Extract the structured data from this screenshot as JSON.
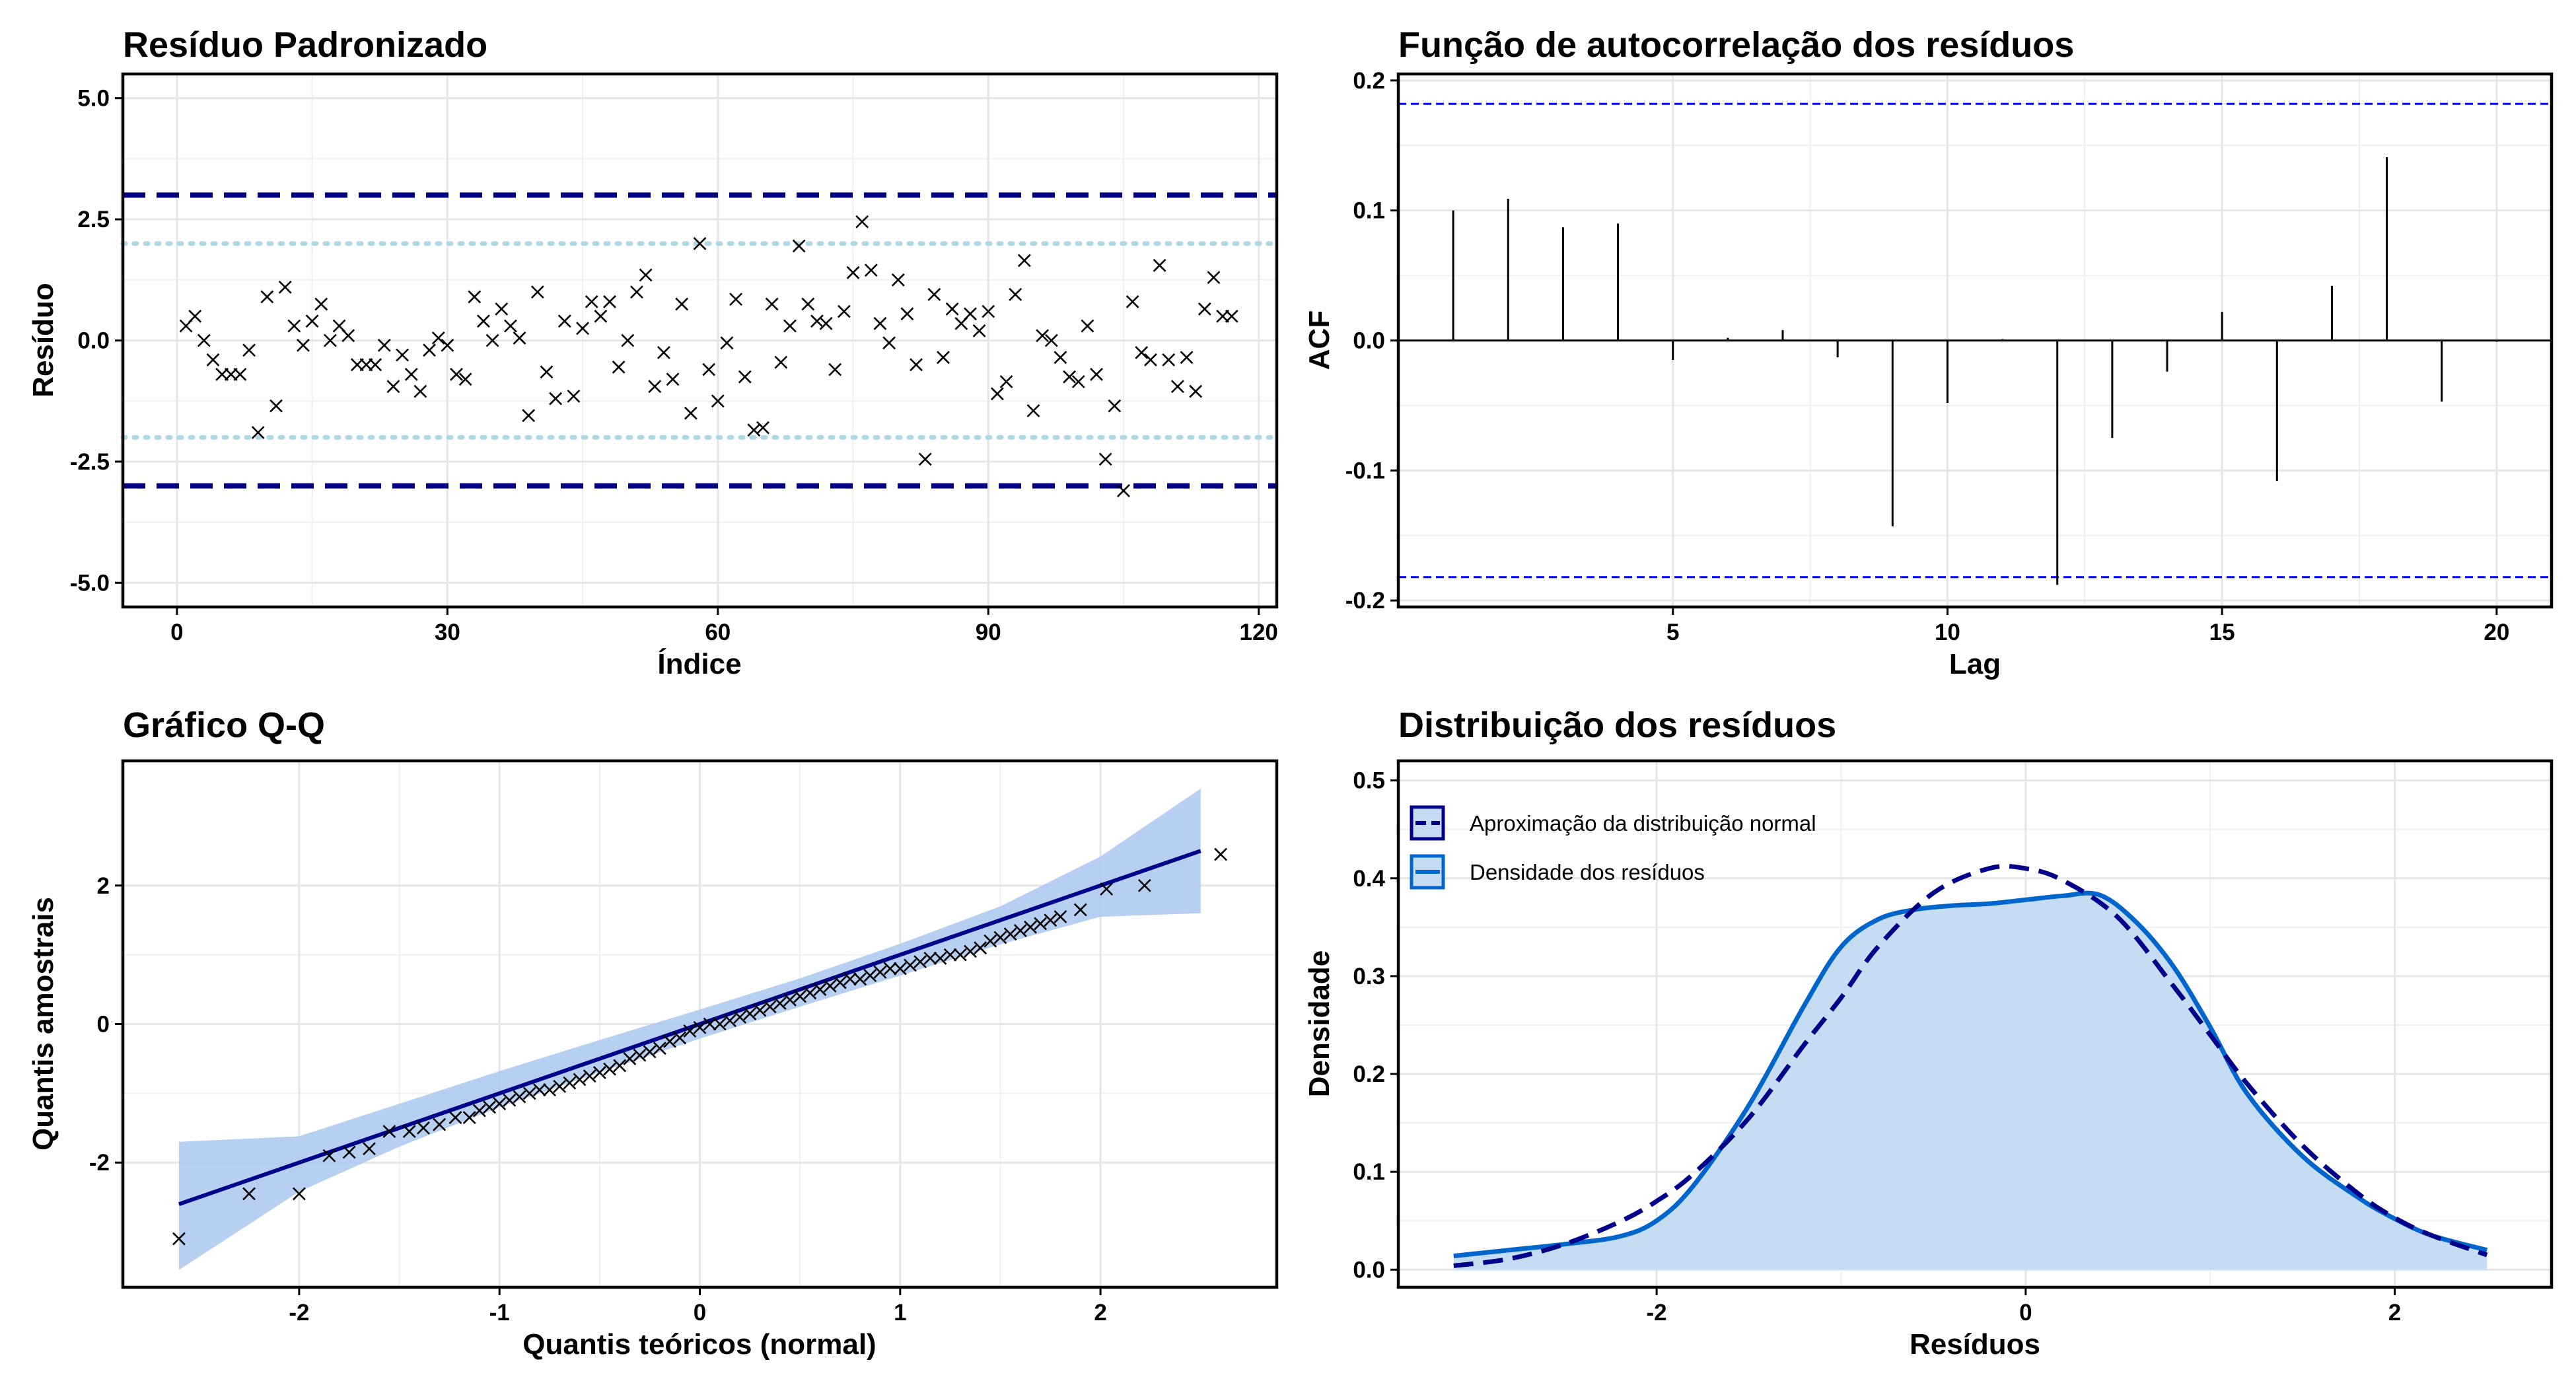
{
  "chart_data": [
    {
      "type": "scatter",
      "title": "Resíduo Padronizado",
      "xlabel": "Índice",
      "ylabel": "Resíduo",
      "xlim": [
        -6,
        122
      ],
      "ylim": [
        -5.5,
        5.5
      ],
      "x_ticks": [
        0,
        30,
        60,
        90,
        120
      ],
      "y_ticks": [
        5.0,
        2.5,
        0.0,
        -2.5,
        -5.0
      ],
      "y_tick_labels": [
        "5.0",
        "2.5",
        "0.0",
        "-2.5",
        "-5.0"
      ],
      "marker": "x",
      "grid": true,
      "reference_lines": [
        {
          "y": 3,
          "style": "dashed",
          "color": "#000080"
        },
        {
          "y": -3,
          "style": "dashed",
          "color": "#000080"
        },
        {
          "y": 2,
          "style": "dotted",
          "color": "#add8e6"
        },
        {
          "y": -2,
          "style": "dotted",
          "color": "#add8e6"
        }
      ],
      "points": [
        [
          1,
          0.3
        ],
        [
          2,
          0.5
        ],
        [
          3,
          0.0
        ],
        [
          4,
          -0.4
        ],
        [
          5,
          -0.7
        ],
        [
          6,
          -0.7
        ],
        [
          7,
          -0.7
        ],
        [
          8,
          -0.2
        ],
        [
          9,
          -1.9
        ],
        [
          10,
          0.9
        ],
        [
          11,
          -1.35
        ],
        [
          12,
          1.1
        ],
        [
          13,
          0.3
        ],
        [
          14,
          -0.1
        ],
        [
          15,
          0.4
        ],
        [
          16,
          0.75
        ],
        [
          17,
          0.0
        ],
        [
          18,
          0.3
        ],
        [
          19,
          0.1
        ],
        [
          20,
          -0.5
        ],
        [
          21,
          -0.5
        ],
        [
          22,
          -0.5
        ],
        [
          23,
          -0.1
        ],
        [
          24,
          -0.95
        ],
        [
          25,
          -0.3
        ],
        [
          26,
          -0.7
        ],
        [
          27,
          -1.05
        ],
        [
          28,
          -0.2
        ],
        [
          29,
          0.05
        ],
        [
          30,
          -0.1
        ],
        [
          31,
          -0.7
        ],
        [
          32,
          -0.8
        ],
        [
          33,
          0.9
        ],
        [
          34,
          0.4
        ],
        [
          35,
          0.0
        ],
        [
          36,
          0.65
        ],
        [
          37,
          0.3
        ],
        [
          38,
          0.05
        ],
        [
          39,
          -1.55
        ],
        [
          40,
          1.0
        ],
        [
          41,
          -0.65
        ],
        [
          42,
          -1.2
        ],
        [
          43,
          0.4
        ],
        [
          44,
          -1.15
        ],
        [
          45,
          0.25
        ],
        [
          46,
          0.8
        ],
        [
          47,
          0.5
        ],
        [
          48,
          0.8
        ],
        [
          49,
          -0.55
        ],
        [
          50,
          0.0
        ],
        [
          51,
          1.0
        ],
        [
          52,
          1.35
        ],
        [
          53,
          -0.95
        ],
        [
          54,
          -0.25
        ],
        [
          55,
          -0.8
        ],
        [
          56,
          0.75
        ],
        [
          57,
          -1.5
        ],
        [
          58,
          2.0
        ],
        [
          59,
          -0.6
        ],
        [
          60,
          -1.25
        ],
        [
          61,
          -0.05
        ],
        [
          62,
          0.85
        ],
        [
          63,
          -0.75
        ],
        [
          64,
          -1.85
        ],
        [
          65,
          -1.8
        ],
        [
          66,
          0.75
        ],
        [
          67,
          -0.45
        ],
        [
          68,
          0.3
        ],
        [
          69,
          1.95
        ],
        [
          70,
          0.75
        ],
        [
          71,
          0.4
        ],
        [
          72,
          0.35
        ],
        [
          73,
          -0.6
        ],
        [
          74,
          0.6
        ],
        [
          75,
          1.4
        ],
        [
          76,
          2.45
        ],
        [
          77,
          1.45
        ],
        [
          78,
          0.35
        ],
        [
          79,
          -0.05
        ],
        [
          80,
          1.25
        ],
        [
          81,
          0.55
        ],
        [
          82,
          -0.5
        ],
        [
          83,
          -2.45
        ],
        [
          84,
          0.95
        ],
        [
          85,
          -0.35
        ],
        [
          86,
          0.65
        ],
        [
          87,
          0.35
        ],
        [
          88,
          0.55
        ],
        [
          89,
          0.2
        ],
        [
          90,
          0.6
        ],
        [
          91,
          -1.1
        ],
        [
          92,
          -0.85
        ],
        [
          93,
          0.95
        ],
        [
          94,
          1.65
        ],
        [
          95,
          -1.45
        ],
        [
          96,
          0.1
        ],
        [
          97,
          0.0
        ],
        [
          98,
          -0.35
        ],
        [
          99,
          -0.75
        ],
        [
          100,
          -0.85
        ],
        [
          101,
          0.3
        ],
        [
          102,
          -0.7
        ],
        [
          103,
          -2.45
        ],
        [
          104,
          -1.35
        ],
        [
          105,
          -3.1
        ],
        [
          106,
          0.8
        ],
        [
          107,
          -0.25
        ],
        [
          108,
          -0.4
        ],
        [
          109,
          1.55
        ],
        [
          110,
          -0.4
        ],
        [
          111,
          -0.95
        ],
        [
          112,
          -0.35
        ],
        [
          113,
          -1.05
        ],
        [
          114,
          0.65
        ],
        [
          115,
          1.3
        ],
        [
          116,
          0.5
        ],
        [
          117,
          0.5
        ]
      ]
    },
    {
      "type": "bar",
      "title": "Função de autocorrelação dos resíduos",
      "xlabel": "Lag",
      "ylabel": "ACF",
      "xlim": [
        0,
        21
      ],
      "ylim": [
        -0.205,
        0.205
      ],
      "x_ticks": [
        5,
        10,
        15,
        20
      ],
      "y_ticks": [
        0.2,
        0.1,
        0.0,
        -0.1,
        -0.2
      ],
      "y_tick_labels": [
        "0.2",
        "0.1",
        "0.0",
        "-0.1",
        "-0.2"
      ],
      "grid": true,
      "confidence_bounds": [
        0.182,
        -0.182
      ],
      "confidence_color": "#0000ff",
      "lags": [
        1,
        2,
        3,
        4,
        5,
        6,
        7,
        8,
        9,
        10,
        11,
        12,
        13,
        14,
        15,
        16,
        17,
        18,
        19,
        20
      ],
      "values": [
        0.1,
        0.109,
        0.087,
        0.09,
        -0.015,
        0.002,
        0.008,
        -0.013,
        -0.143,
        -0.048,
        0.001,
        -0.188,
        -0.075,
        -0.024,
        0.022,
        -0.108,
        0.042,
        0.141,
        -0.047,
        -0.001
      ]
    },
    {
      "type": "scatter",
      "title": "Gráfico Q-Q",
      "xlabel": "Quantis teóricos (normal)",
      "ylabel": "Quantis amostrais",
      "xlim": [
        -2.88,
        2.88
      ],
      "ylim": [
        -3.8,
        3.8
      ],
      "x_ticks": [
        -2,
        -1,
        0,
        1,
        2
      ],
      "y_ticks": [
        2,
        0,
        -2
      ],
      "marker": "x",
      "grid": true,
      "reference_line": {
        "x": [
          -2.6,
          2.5
        ],
        "y": [
          -2.6,
          2.5
        ],
        "color": "#00008b"
      },
      "confidence_band": {
        "x": [
          -2.6,
          -2.0,
          -1.5,
          -1.0,
          -0.5,
          0.0,
          0.5,
          1.0,
          1.5,
          2.0,
          2.5
        ],
        "upper": [
          -1.7,
          -1.62,
          -1.15,
          -0.68,
          -0.23,
          0.21,
          0.66,
          1.16,
          1.7,
          2.42,
          3.4
        ],
        "lower": [
          -3.55,
          -2.42,
          -1.77,
          -1.2,
          -0.7,
          -0.21,
          0.25,
          0.7,
          1.15,
          1.55,
          1.6
        ],
        "color": "#aac8f0"
      },
      "points": [
        [
          -2.6,
          -3.1
        ],
        [
          -2.25,
          -2.45
        ],
        [
          -2.0,
          -2.45
        ],
        [
          -1.85,
          -1.9
        ],
        [
          -1.75,
          -1.85
        ],
        [
          -1.65,
          -1.8
        ],
        [
          -1.55,
          -1.55
        ],
        [
          -1.45,
          -1.55
        ],
        [
          -1.38,
          -1.5
        ],
        [
          -1.3,
          -1.45
        ],
        [
          -1.22,
          -1.35
        ],
        [
          -1.15,
          -1.35
        ],
        [
          -1.1,
          -1.25
        ],
        [
          -1.05,
          -1.2
        ],
        [
          -1.0,
          -1.15
        ],
        [
          -0.95,
          -1.1
        ],
        [
          -0.9,
          -1.05
        ],
        [
          -0.85,
          -1.0
        ],
        [
          -0.8,
          -0.95
        ],
        [
          -0.75,
          -0.95
        ],
        [
          -0.7,
          -0.9
        ],
        [
          -0.65,
          -0.85
        ],
        [
          -0.6,
          -0.8
        ],
        [
          -0.55,
          -0.75
        ],
        [
          -0.5,
          -0.7
        ],
        [
          -0.45,
          -0.65
        ],
        [
          -0.4,
          -0.6
        ],
        [
          -0.35,
          -0.5
        ],
        [
          -0.3,
          -0.45
        ],
        [
          -0.25,
          -0.4
        ],
        [
          -0.2,
          -0.35
        ],
        [
          -0.15,
          -0.25
        ],
        [
          -0.1,
          -0.2
        ],
        [
          -0.05,
          -0.1
        ],
        [
          0.0,
          -0.05
        ],
        [
          0.05,
          0.0
        ],
        [
          0.1,
          0.0
        ],
        [
          0.15,
          0.05
        ],
        [
          0.2,
          0.1
        ],
        [
          0.25,
          0.15
        ],
        [
          0.3,
          0.2
        ],
        [
          0.35,
          0.25
        ],
        [
          0.4,
          0.3
        ],
        [
          0.45,
          0.35
        ],
        [
          0.5,
          0.4
        ],
        [
          0.55,
          0.45
        ],
        [
          0.6,
          0.5
        ],
        [
          0.65,
          0.55
        ],
        [
          0.7,
          0.6
        ],
        [
          0.75,
          0.65
        ],
        [
          0.8,
          0.65
        ],
        [
          0.85,
          0.7
        ],
        [
          0.9,
          0.75
        ],
        [
          0.95,
          0.8
        ],
        [
          1.0,
          0.8
        ],
        [
          1.05,
          0.85
        ],
        [
          1.1,
          0.9
        ],
        [
          1.15,
          0.95
        ],
        [
          1.2,
          0.95
        ],
        [
          1.25,
          1.0
        ],
        [
          1.3,
          1.0
        ],
        [
          1.35,
          1.05
        ],
        [
          1.4,
          1.1
        ],
        [
          1.45,
          1.2
        ],
        [
          1.5,
          1.25
        ],
        [
          1.55,
          1.3
        ],
        [
          1.6,
          1.35
        ],
        [
          1.65,
          1.4
        ],
        [
          1.7,
          1.45
        ],
        [
          1.75,
          1.5
        ],
        [
          1.8,
          1.55
        ],
        [
          1.9,
          1.65
        ],
        [
          2.03,
          1.95
        ],
        [
          2.22,
          2.0
        ],
        [
          2.6,
          2.45
        ]
      ]
    },
    {
      "type": "area",
      "title": "Distribuição dos resíduos",
      "xlabel": "Resíduos",
      "ylabel": "Densidade",
      "xlim": [
        -3.4,
        2.85
      ],
      "ylim": [
        -0.018,
        0.52
      ],
      "x_ticks": [
        -2,
        0,
        2
      ],
      "y_ticks": [
        0.5,
        0.4,
        0.3,
        0.2,
        0.1,
        0.0
      ],
      "y_tick_labels": [
        "0.5",
        "0.4",
        "0.3",
        "0.2",
        "0.1",
        "0.0"
      ],
      "grid": true,
      "legend": {
        "position": "top-left",
        "entries": [
          {
            "label": "Aproximação da distribuição normal",
            "color": "#00008b",
            "style": "dashed"
          },
          {
            "label": "Densidade dos resíduos",
            "color": "#0066cc",
            "style": "solid"
          }
        ]
      },
      "series": [
        {
          "name": "Aproximação da distribuição normal",
          "style": "dashed",
          "color": "#00008b",
          "x": [
            -3.1,
            -2.8,
            -2.5,
            -2.2,
            -2.0,
            -1.8,
            -1.5,
            -1.2,
            -1.0,
            -0.8,
            -0.5,
            -0.2,
            0.0,
            0.2,
            0.5,
            0.8,
            1.0,
            1.2,
            1.5,
            1.8,
            2.0,
            2.2,
            2.5
          ],
          "y": [
            0.004,
            0.011,
            0.026,
            0.049,
            0.07,
            0.098,
            0.155,
            0.23,
            0.278,
            0.33,
            0.385,
            0.41,
            0.41,
            0.398,
            0.36,
            0.29,
            0.24,
            0.19,
            0.127,
            0.078,
            0.053,
            0.035,
            0.015
          ]
        },
        {
          "name": "Densidade dos resíduos",
          "style": "solid",
          "color": "#0066cc",
          "fill": "#c6dcf2",
          "x": [
            -3.1,
            -2.8,
            -2.5,
            -2.2,
            -2.0,
            -1.8,
            -1.5,
            -1.2,
            -1.0,
            -0.8,
            -0.6,
            -0.4,
            -0.2,
            0.0,
            0.2,
            0.4,
            0.6,
            0.8,
            1.0,
            1.2,
            1.5,
            1.8,
            2.0,
            2.2,
            2.5
          ],
          "y": [
            0.014,
            0.02,
            0.026,
            0.034,
            0.05,
            0.086,
            0.168,
            0.27,
            0.33,
            0.358,
            0.368,
            0.372,
            0.374,
            0.378,
            0.382,
            0.383,
            0.355,
            0.31,
            0.248,
            0.18,
            0.116,
            0.074,
            0.052,
            0.035,
            0.02
          ]
        }
      ]
    }
  ]
}
